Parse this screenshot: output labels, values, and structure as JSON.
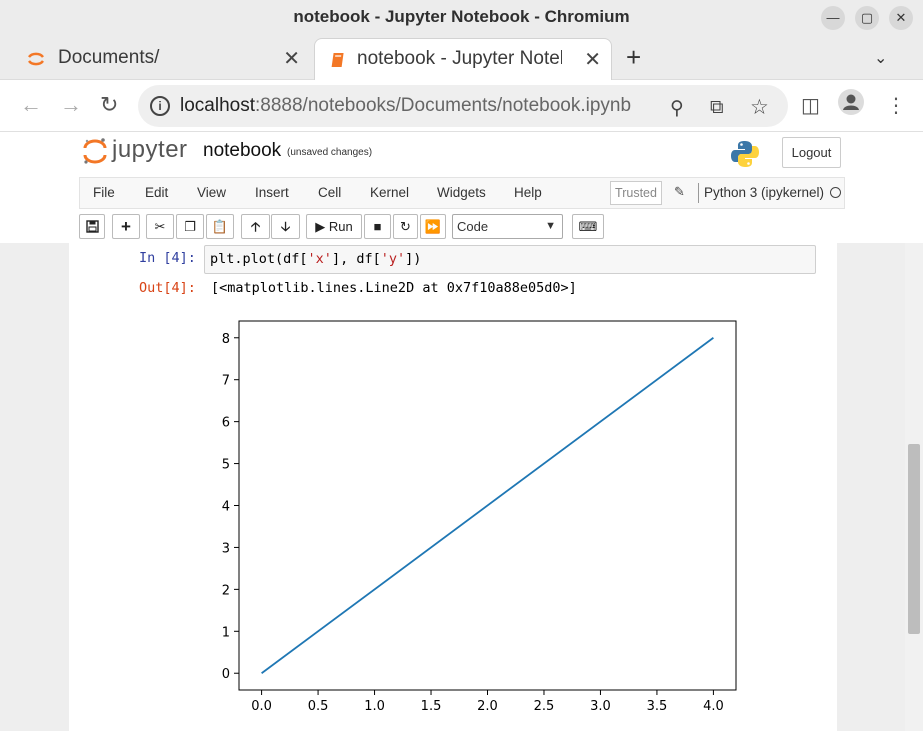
{
  "window": {
    "title": "notebook - Jupyter Notebook - Chromium"
  },
  "tabs": [
    {
      "label": "Documents/",
      "icon": "jupyter-icon",
      "active": false
    },
    {
      "label": "notebook - Jupyter Notebook",
      "icon": "notebook-icon",
      "active": true
    }
  ],
  "address": {
    "host": "localhost",
    "path": ":8888/notebooks/Documents/notebook.ipynb"
  },
  "jupyter": {
    "logo_text": "jupyter",
    "notebook_name": "notebook",
    "save_status": "(unsaved changes)",
    "logout_label": "Logout"
  },
  "menu": {
    "items": [
      "File",
      "Edit",
      "View",
      "Insert",
      "Cell",
      "Kernel",
      "Widgets",
      "Help"
    ],
    "trusted": "Trusted",
    "kernel": "Python 3 (ipykernel)"
  },
  "toolbar": {
    "run_label": "Run",
    "cell_type": "Code"
  },
  "cell": {
    "in_prompt": "In [4]:",
    "code_prefix": "plt.plot(df[",
    "code_str1": "'x'",
    "code_mid": "], df[",
    "code_str2": "'y'",
    "code_suffix": "])",
    "out_prompt": "Out[4]:",
    "output": "[<matplotlib.lines.Line2D at 0x7f10a88e05d0>]"
  },
  "chart_data": {
    "type": "line",
    "x": [
      0.0,
      4.0
    ],
    "series": [
      {
        "values": [
          0,
          8
        ],
        "color": "#1f77b4"
      }
    ],
    "xlim": [
      -0.2,
      4.2
    ],
    "ylim": [
      -0.4,
      8.4
    ],
    "xticks": [
      "0.0",
      "0.5",
      "1.0",
      "1.5",
      "2.0",
      "2.5",
      "3.0",
      "3.5",
      "4.0"
    ],
    "yticks": [
      "0",
      "1",
      "2",
      "3",
      "4",
      "5",
      "6",
      "7",
      "8"
    ],
    "grid": false,
    "title": "",
    "xlabel": "",
    "ylabel": ""
  },
  "colors": {
    "jupyter_orange": "#f37726",
    "prompt_in": "#303f9f",
    "prompt_out": "#d84315"
  }
}
